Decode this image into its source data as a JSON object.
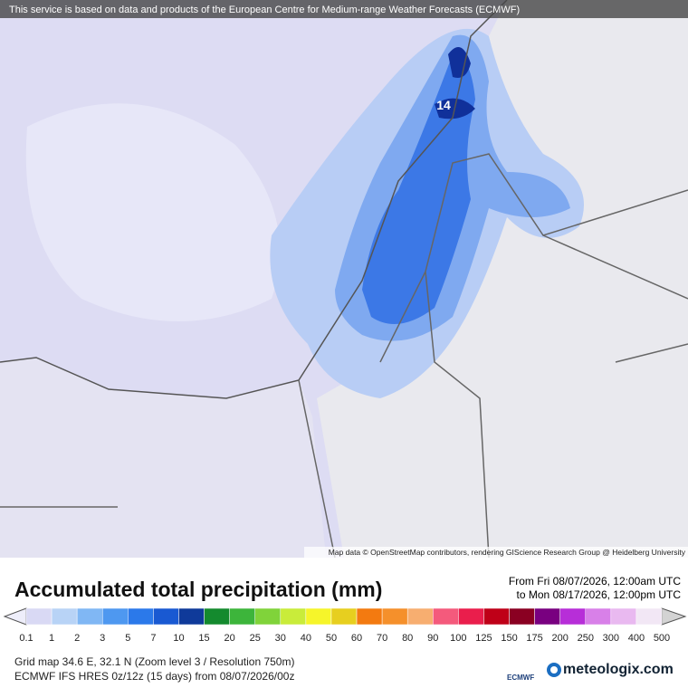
{
  "header": {
    "notice": "This service is based on data and products of the European Centre for Medium-range Weather Forecasts (ECMWF)"
  },
  "map": {
    "max_label": "14",
    "attribution": "Map data © OpenStreetMap contributors, rendering GIScience Research Group @ Heidelberg University"
  },
  "title": "Accumulated total precipitation (mm)",
  "period": {
    "from": "From Fri 08/07/2026, 12:00am UTC",
    "to": "to Mon 08/17/2026, 12:00pm UTC"
  },
  "legend": {
    "levels": [
      "0.1",
      "1",
      "2",
      "3",
      "5",
      "7",
      "10",
      "15",
      "20",
      "25",
      "30",
      "40",
      "50",
      "60",
      "70",
      "80",
      "90",
      "100",
      "125",
      "150",
      "175",
      "200",
      "250",
      "300",
      "400",
      "500"
    ],
    "colors": [
      "#d9d9f4",
      "#b8d3f6",
      "#80b7f4",
      "#4e98f0",
      "#2b79ea",
      "#1959d2",
      "#0f3a9a",
      "#148a2e",
      "#3db53b",
      "#80d33a",
      "#c9ec3a",
      "#f6f52a",
      "#e7cf1f",
      "#f37a10",
      "#f5902b",
      "#f7ae70",
      "#f45a7c",
      "#ea1e4c",
      "#bf0018",
      "#8a0022",
      "#790080",
      "#b72ed8",
      "#d880e8",
      "#e9b9f0",
      "#f2e7f5"
    ],
    "low_color": "#eeeefa",
    "high_color": "#d3d3d3"
  },
  "footer": {
    "grid": "Grid map 34.6 E, 32.1 N (Zoom level 3 / Resolution 750m)",
    "model": "ECMWF IFS HRES 0z/12z (15 days) from 08/07/2026/00z",
    "ecmwf_logo": "ECMWF",
    "brand": "meteologix.com"
  }
}
